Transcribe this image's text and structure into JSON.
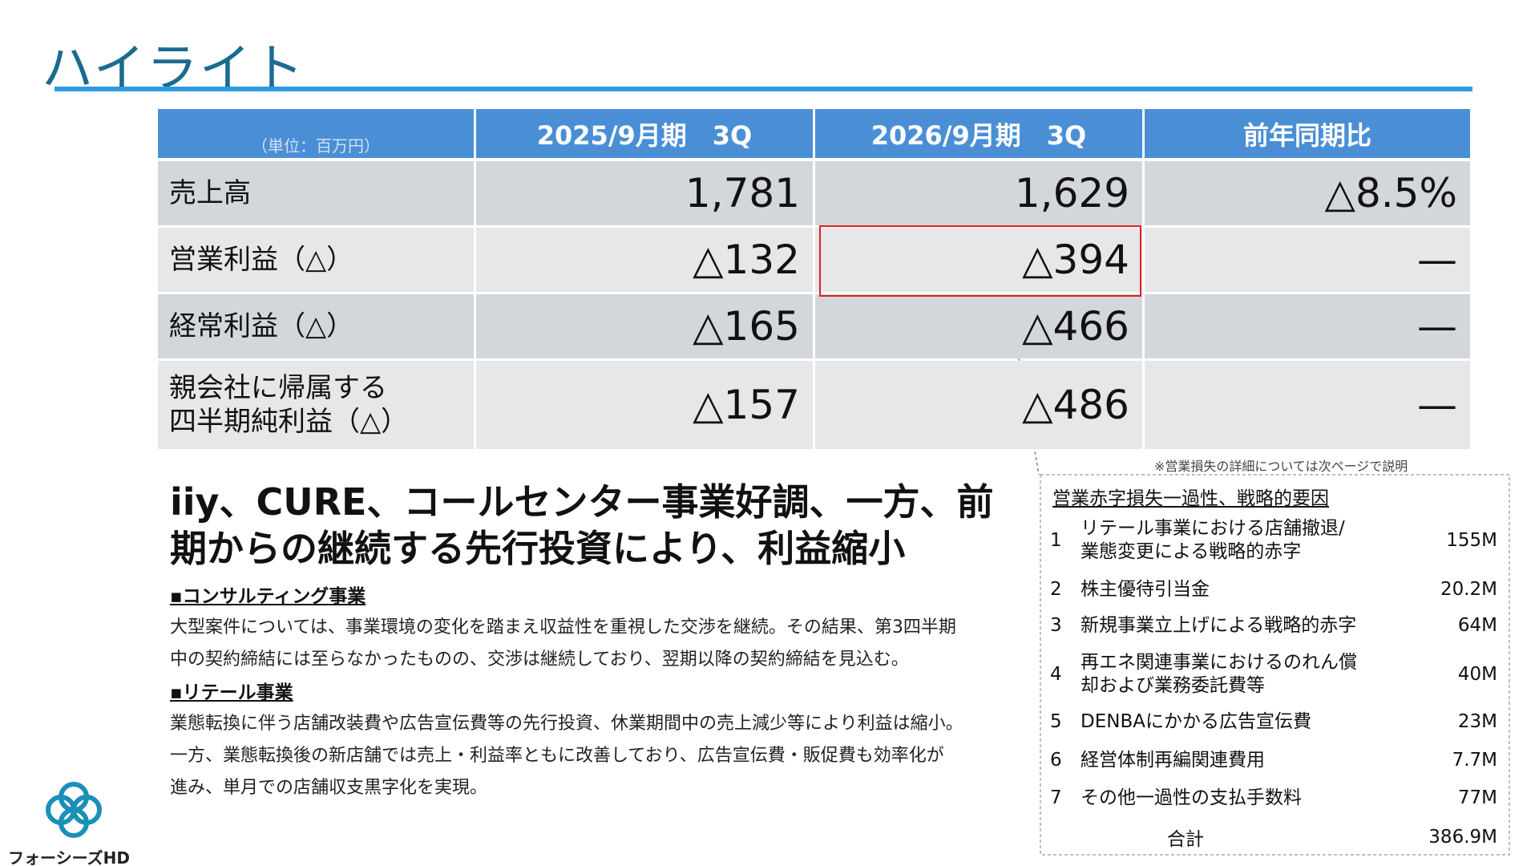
{
  "header": {
    "title": "ハイライト"
  },
  "table": {
    "unit": "（単位：百万円）",
    "columns": [
      "2025/9月期　3Q",
      "2026/9月期　3Q",
      "前年同期比"
    ],
    "rows": [
      [
        "売上高",
        "1,781",
        "1,629",
        "△8.5%"
      ],
      [
        "営業利益（△）",
        "△132",
        "△394",
        "—"
      ],
      [
        "経常利益（△）",
        "△165",
        "△466",
        "—"
      ],
      [
        "親会社に帰属する\n四半期純利益（△）",
        "△157",
        "△486",
        "—"
      ]
    ]
  },
  "headline": [
    "iiy、CURE、コールセンター事業好調、一方、前",
    "期からの継続する先行投資により、利益縮小"
  ],
  "sections": [
    {
      "heading": "▪コンサルティング事業",
      "lines": [
        "大型案件については、事業環境の変化を踏まえ収益性を重視した交渉を継続。その結果、第3四半期",
        "中の契約締結には至らなかったものの、交渉は継続しており、翌期以降の契約締結を見込む。"
      ]
    },
    {
      "heading": "▪リテール事業",
      "lines": [
        "業態転換に伴う店舗改装費や広告宣伝費等の先行投資、休業期間中の売上減少等により利益は縮小。",
        "一方、業態転換後の新店舗では売上・利益率ともに改善しており、広告宣伝費・販促費も効率化が",
        "進み、単月での店舗収支黒字化を実現。"
      ]
    }
  ],
  "note": "※営業損失の詳細については次ページで説明",
  "losses": {
    "title": "営業赤字損失一過性、戦略的要因",
    "items": [
      {
        "no": "1",
        "label": "リテール事業における店舗撤退/\n業態変更による戦略的赤字",
        "amount": "155M"
      },
      {
        "no": "2",
        "label": "株主優待引当金",
        "amount": "20.2M"
      },
      {
        "no": "3",
        "label": "新規事業立上げによる戦略的赤字",
        "amount": "64M"
      },
      {
        "no": "4",
        "label": "再エネ関連事業におけるのれん償\n却および業務委託費等",
        "amount": "40M"
      },
      {
        "no": "5",
        "label": "DENBAにかかる広告宣伝費",
        "amount": "23M"
      },
      {
        "no": "6",
        "label": "経営体制再編関連費用",
        "amount": "7.7M"
      },
      {
        "no": "7",
        "label": "その他一過性の支払手数料",
        "amount": "77M"
      }
    ],
    "total_label": "合計",
    "total": "386.9M"
  },
  "logo": {
    "text": "フォーシーズHD"
  }
}
